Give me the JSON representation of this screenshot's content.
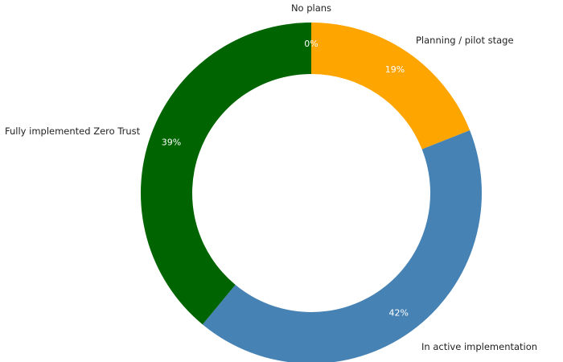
{
  "chart_data": {
    "type": "pie",
    "variant": "donut",
    "title": "",
    "slices": [
      {
        "label": "No plans",
        "value": 0,
        "value_label": "0%",
        "color": "#2e8b57"
      },
      {
        "label": "Planning / pilot stage",
        "value": 19,
        "value_label": "19%",
        "color": "#ffa500"
      },
      {
        "label": "In active implementation",
        "value": 42,
        "value_label": "42%",
        "color": "#4682b4"
      },
      {
        "label": "Fully implemented Zero Trust",
        "value": 39,
        "value_label": "39%",
        "color": "#006400"
      }
    ],
    "start_angle": "top",
    "direction": "clockwise",
    "legend": "none"
  }
}
